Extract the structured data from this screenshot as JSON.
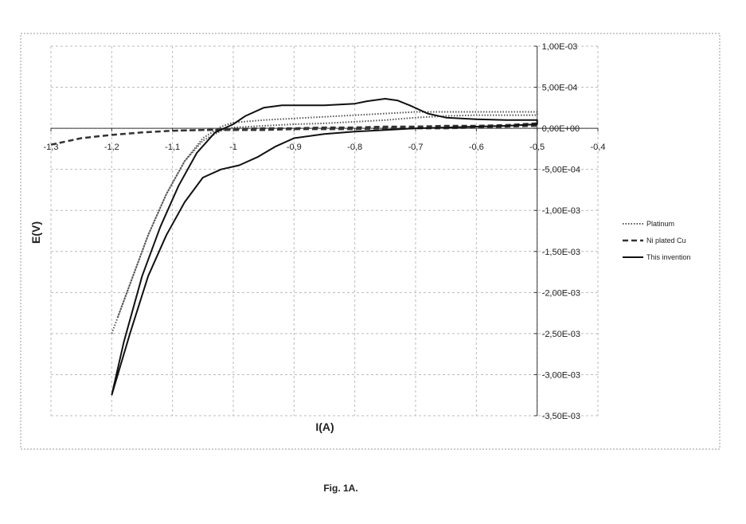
{
  "chart_data": {
    "type": "line",
    "caption": "Fig. 1A.",
    "xlabel": "I(A)",
    "ylabel": "E(V)",
    "xlim": [
      -1.3,
      -0.4
    ],
    "ylim": [
      -0.0035,
      0.001
    ],
    "grid": true,
    "legend_position": "right",
    "x_tick_labels": [
      "-1,3",
      "-1,2",
      "-1,1",
      "-1",
      "-0,9",
      "-0,8",
      "-0,7",
      "-0,6",
      "-0,5",
      "-0,4"
    ],
    "x_tick_values": [
      -1.3,
      -1.2,
      -1.1,
      -1.0,
      -0.9,
      -0.8,
      -0.7,
      -0.6,
      -0.5,
      -0.4
    ],
    "y_tick_labels": [
      "1,00E-03",
      "5,00E-04",
      "0,00E+00",
      "-5,00E-04",
      "-1,00E-03",
      "-1,50E-03",
      "-2,00E-03",
      "-2,50E-03",
      "-3,00E-03",
      "-3,50E-03"
    ],
    "y_tick_values": [
      0.001,
      0.0005,
      0,
      -0.0005,
      -0.001,
      -0.0015,
      -0.002,
      -0.0025,
      -0.003,
      -0.0035
    ],
    "series": [
      {
        "name": "Platinum",
        "style": "dotted",
        "color": "#555555",
        "x": [
          -1.2,
          -1.17,
          -1.14,
          -1.11,
          -1.08,
          -1.05,
          -1.02,
          -1.0,
          -0.95,
          -0.9,
          -0.85,
          -0.8,
          -0.75,
          -0.7,
          -0.65,
          -0.6,
          -0.55,
          -0.5,
          -0.5,
          -0.55,
          -0.6,
          -0.65,
          -0.7,
          -0.75,
          -0.8,
          -0.85,
          -0.9,
          -0.95,
          -1.0,
          -1.02,
          -1.05,
          -1.08,
          -1.11,
          -1.14,
          -1.17,
          -1.19
        ],
        "y": [
          -0.0025,
          -0.0019,
          -0.0013,
          -0.0008,
          -0.0004,
          -0.00012,
          2e-05,
          7e-05,
          0.0001,
          0.00012,
          0.00014,
          0.00016,
          0.00018,
          0.0002,
          0.0002,
          0.0002,
          0.0002,
          0.0002,
          0.00016,
          0.00016,
          0.00016,
          0.00015,
          0.00013,
          0.0001,
          8e-05,
          6e-05,
          5e-05,
          3e-05,
          1e-05,
          -3e-05,
          -0.00015,
          -0.0004,
          -0.0008,
          -0.0013,
          -0.0019,
          -0.0023
        ]
      },
      {
        "name": "Ni plated Cu",
        "style": "dashed",
        "color": "#333333",
        "x": [
          -1.3,
          -1.25,
          -1.2,
          -1.15,
          -1.1,
          -1.05,
          -1.0,
          -0.95,
          -0.9,
          -0.85,
          -0.8,
          -0.75,
          -0.7,
          -0.65,
          -0.6,
          -0.55,
          -0.5,
          -0.5,
          -0.55,
          -0.6,
          -0.65,
          -0.7,
          -0.75,
          -0.8,
          -0.85,
          -0.9,
          -0.95,
          -1.0,
          -1.05,
          -1.1
        ],
        "y": [
          -0.0002,
          -0.00012,
          -8e-05,
          -5e-05,
          -3e-05,
          -2e-05,
          -1e-05,
          0.0,
          0.0,
          1e-05,
          1e-05,
          2e-05,
          2e-05,
          3e-05,
          3e-05,
          4e-05,
          6e-05,
          3e-05,
          2e-05,
          1e-05,
          0.0,
          0.0,
          0.0,
          -1e-05,
          -1e-05,
          -1e-05,
          -2e-05,
          -2e-05,
          -2e-05,
          -3e-05
        ]
      },
      {
        "name": "This invention",
        "style": "solid",
        "color": "#111111",
        "x": [
          -1.2,
          -1.18,
          -1.15,
          -1.12,
          -1.09,
          -1.06,
          -1.03,
          -1.0,
          -0.98,
          -0.95,
          -0.92,
          -0.9,
          -0.85,
          -0.8,
          -0.78,
          -0.75,
          -0.73,
          -0.71,
          -0.68,
          -0.65,
          -0.6,
          -0.55,
          -0.5,
          -0.5,
          -0.55,
          -0.6,
          -0.65,
          -0.7,
          -0.75,
          -0.8,
          -0.85,
          -0.9,
          -0.93,
          -0.96,
          -0.99,
          -1.02,
          -1.05,
          -1.08,
          -1.11,
          -1.14,
          -1.17,
          -1.2
        ],
        "y": [
          -0.00325,
          -0.0026,
          -0.0018,
          -0.0012,
          -0.0007,
          -0.0003,
          -5e-05,
          5e-05,
          0.00015,
          0.00025,
          0.00028,
          0.00028,
          0.00028,
          0.0003,
          0.00033,
          0.00036,
          0.00034,
          0.00028,
          0.00018,
          0.00013,
          0.00011,
          0.0001,
          0.0001,
          5e-05,
          3e-05,
          2e-05,
          1e-05,
          0.0,
          -2e-05,
          -4e-05,
          -7e-05,
          -0.00012,
          -0.00022,
          -0.00035,
          -0.00045,
          -0.0005,
          -0.0006,
          -0.0009,
          -0.0013,
          -0.0018,
          -0.0025,
          -0.00325
        ]
      }
    ]
  }
}
